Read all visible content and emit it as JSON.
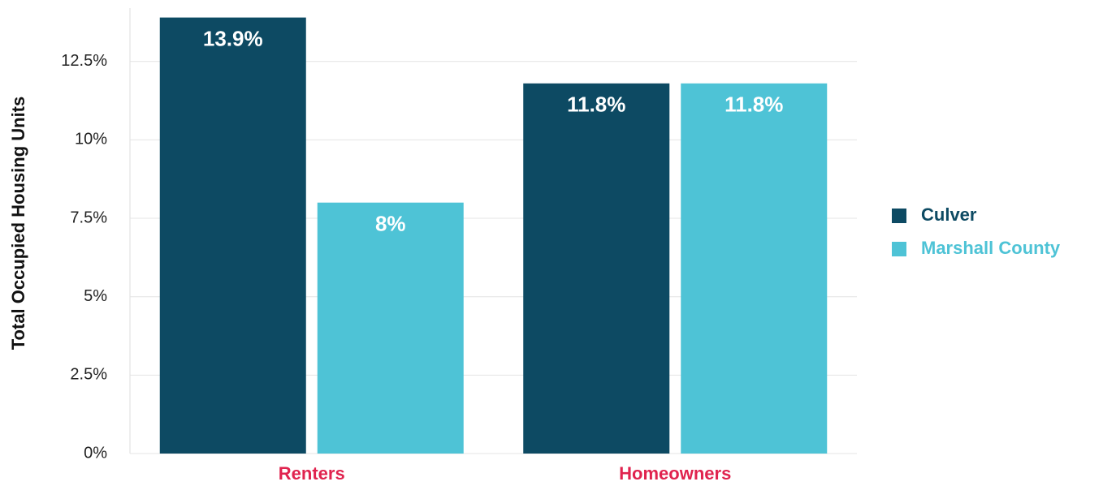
{
  "chart_data": {
    "type": "bar",
    "y_label": "Total Occupied Housing Units",
    "categories": [
      "Renters",
      "Homeowners"
    ],
    "series": [
      {
        "name": "Culver",
        "color": "#0d4a63",
        "values": [
          13.9,
          11.8
        ],
        "value_labels": [
          "13.9%",
          "11.8%"
        ]
      },
      {
        "name": "Marshall County",
        "color": "#4ec3d6",
        "values": [
          8,
          11.8
        ],
        "value_labels": [
          "8%",
          "11.8%"
        ]
      }
    ],
    "ylim": [
      0,
      14.2
    ],
    "yticks": [
      {
        "value": 0,
        "label": "0%"
      },
      {
        "value": 2.5,
        "label": "2.5%"
      },
      {
        "value": 5,
        "label": "5%"
      },
      {
        "value": 7.5,
        "label": "7.5%"
      },
      {
        "value": 10,
        "label": "10%"
      },
      {
        "value": 12.5,
        "label": "12.5%"
      }
    ],
    "grid": true,
    "legend": "right"
  }
}
